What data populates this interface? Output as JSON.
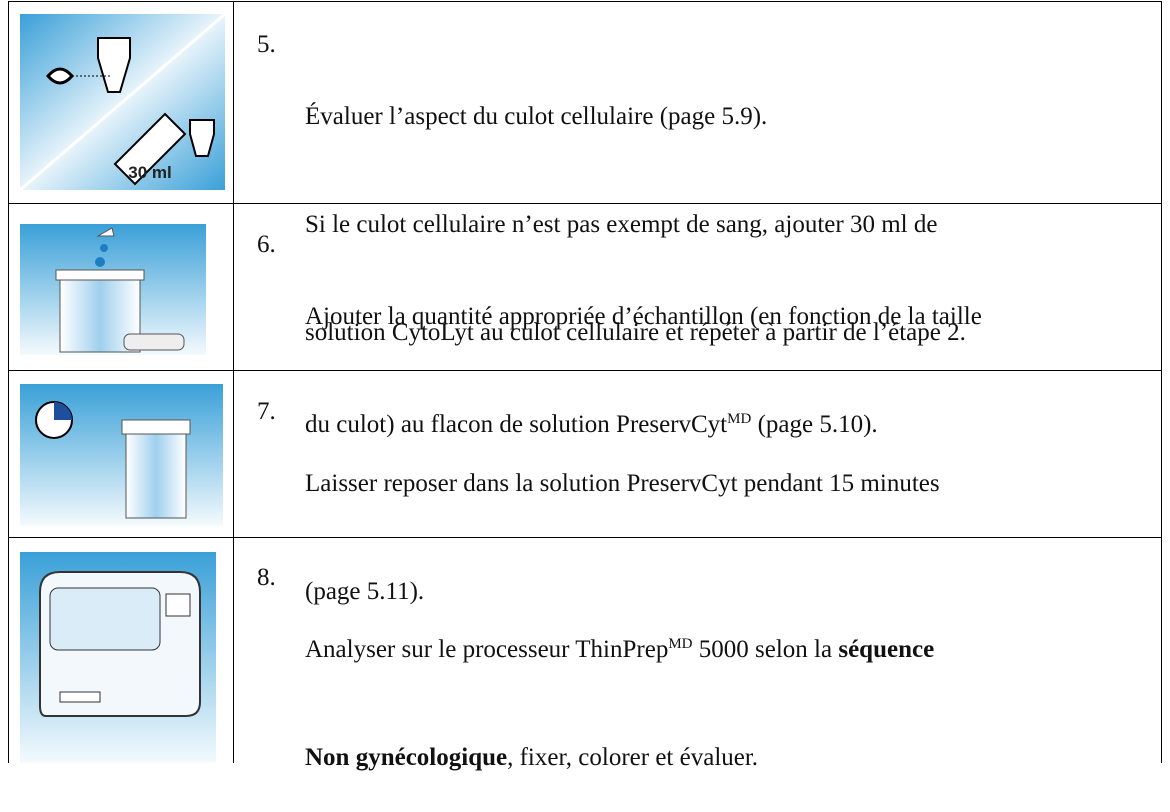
{
  "table": {
    "rows": [
      {
        "number": "5.",
        "lines": [
          [
            "Évaluer l’aspect du culot cellulaire (page 5.9)."
          ],
          [
            "Si le culot cellulaire n’est pas exempt de sang, ajouter 30 ml de"
          ],
          [
            "solution CytoLyt au culot cellulaire et répéter à partir de l’étape 2."
          ]
        ],
        "image_label": "30 ml"
      },
      {
        "number": "6.",
        "lines": [
          [
            "Ajouter la quantité appropriée d’échantillon (en fonction de la taille"
          ],
          [
            "du culot) au flacon de solution PreservCyt",
            "MD",
            " (page 5.10)."
          ]
        ]
      },
      {
        "number": "7.",
        "lines": [
          [
            "Laisser reposer dans la solution PreservCyt pendant 15 minutes"
          ],
          [
            "(page 5.11)."
          ]
        ]
      },
      {
        "number": "8.",
        "lines": [
          [
            "Analyser sur le processeur ThinPrep",
            "MD",
            " 5000 selon la ",
            "séquence"
          ],
          [
            "Non gynécologique",
            ", fixer, colorer et évaluer."
          ]
        ]
      }
    ]
  }
}
